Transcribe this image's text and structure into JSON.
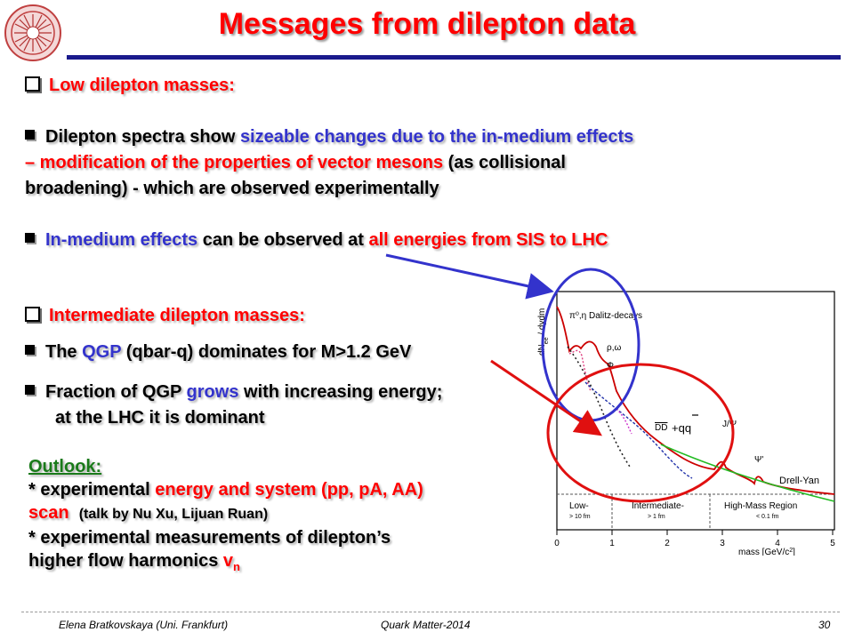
{
  "title": "Messages from dilepton data",
  "sections": {
    "low": {
      "heading": "Low dilepton masses:",
      "b1_p1": "Dilepton spectra show ",
      "b1_p2": "sizeable changes due to the in-medium effects",
      "b1_p3": "– modification of the properties of vector mesons",
      "b1_p4": " (as collisional",
      "b1_p5": "broadening) - which are observed experimentally",
      "b2_p1": "In-medium effects",
      "b2_p2": " can be observed at ",
      "b2_p3": "all energies from SIS to LHC"
    },
    "intermediate": {
      "heading": "Intermediate dilepton masses:",
      "b1_p1": "The ",
      "b1_p2": "QGP",
      "b1_p3": " (qbar-q)  dominates for M>1.2 GeV",
      "b2_p1": "Fraction of QGP ",
      "b2_p2": "grows",
      "b2_p3": " with increasing energy;",
      "b2_p4": "at the LHC it is dominant"
    }
  },
  "outlook": {
    "heading": "Outlook:",
    "l1_p1": "* experimental ",
    "l1_p2": "energy and system (pp, pA, AA)",
    "l2_p1": "scan",
    "l2_p2": "(talk by Nu Xu, Lijuan Ruan)",
    "l3": "* experimental measurements of dilepton’s",
    "l4_p1": "higher flow harmonics ",
    "l4_p2": "v",
    "l4_sub": "n"
  },
  "plot": {
    "ylabel": "dN",
    "ylabel_sub": "ee",
    "ylabel_rest": " / dydm",
    "labels": {
      "dalitz": "π⁰,η Dalitz-decays",
      "rho": "ρ,ω",
      "phi": "Φ",
      "dd": "DD",
      "qq": "+qq",
      "jpsi": "J/Ψ",
      "psiprime": "Ψ'",
      "drellyan": "Drell-Yan"
    },
    "regions": {
      "low": "Low-",
      "low_sub": "> 10 fm",
      "mid": "Intermediate-",
      "mid_sub": "> 1 fm",
      "high": "High-Mass Region",
      "high_sub": "< 0.1 fm"
    },
    "xlabel": "mass [GeV/c",
    "xlabel_sup": "2",
    "xlabel_end": "]",
    "xticks": [
      "0",
      "1",
      "2",
      "3",
      "4",
      "5"
    ]
  },
  "footer": {
    "author": "Elena Bratkovskaya  (Uni. Frankfurt)",
    "conference": "Quark Matter-2014",
    "page": "30"
  },
  "colors": {
    "title": "#ff0000",
    "accent_blue": "#3333cc",
    "rule": "#1a1a8c",
    "circle_blue": "#3333cc",
    "circle_red": "#e01010"
  }
}
